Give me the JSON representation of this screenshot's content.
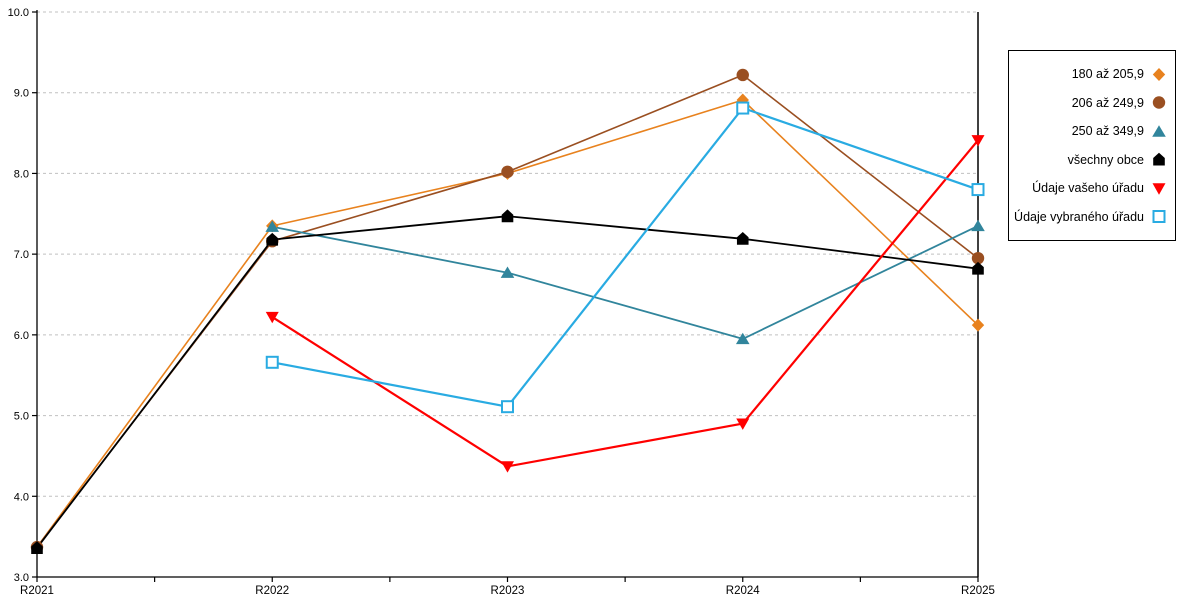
{
  "chart_data": {
    "type": "line",
    "title": "",
    "categories": [
      "R2021",
      "R2022",
      "R2023",
      "R2024",
      "R2025"
    ],
    "ylim": [
      3.0,
      10.0
    ],
    "y_tick_step": 1.0,
    "y_tick_labels_top_to_bottom": [
      "10.0",
      "9.0",
      "8.0",
      "7.0",
      "6.0",
      "5.0",
      "4.0",
      "3.0"
    ],
    "grid": "horizontal-dashed",
    "x_minor_ticks_at_half_intervals": true,
    "highlight_vline_at": "R2025",
    "legend_position": "right",
    "series": [
      {
        "name": "180 až 205,9",
        "marker": "diamond",
        "color": "#E8821E",
        "line_width": 1.6,
        "values": [
          3.37,
          7.35,
          8.0,
          8.91,
          6.12
        ]
      },
      {
        "name": "206 až 249,9",
        "marker": "circle",
        "color": "#9A4F21",
        "line_width": 1.6,
        "values": [
          3.37,
          7.16,
          8.02,
          9.22,
          6.95
        ]
      },
      {
        "name": "250 až 349,9",
        "marker": "triangle-up",
        "color": "#31859C",
        "line_width": 1.8,
        "values": [
          null,
          7.34,
          6.77,
          5.95,
          7.35
        ]
      },
      {
        "name": "všechny obce",
        "marker": "house",
        "color": "#000000",
        "line_width": 1.8,
        "values": [
          3.36,
          7.18,
          7.47,
          7.19,
          6.82
        ]
      },
      {
        "name": "Údaje vašeho úřadu",
        "marker": "triangle-down",
        "color": "#FF0000",
        "line_width": 2.2,
        "values": [
          null,
          6.22,
          4.37,
          4.9,
          8.41
        ]
      },
      {
        "name": "Údaje vybraného úřadu",
        "marker": "square-open",
        "color": "#29ABE2",
        "line_width": 2.2,
        "values": [
          null,
          5.66,
          5.11,
          8.81,
          7.8
        ]
      }
    ],
    "colors": {
      "axis": "#000000",
      "gridline": "#c0c0c0",
      "background": "#ffffff"
    }
  }
}
